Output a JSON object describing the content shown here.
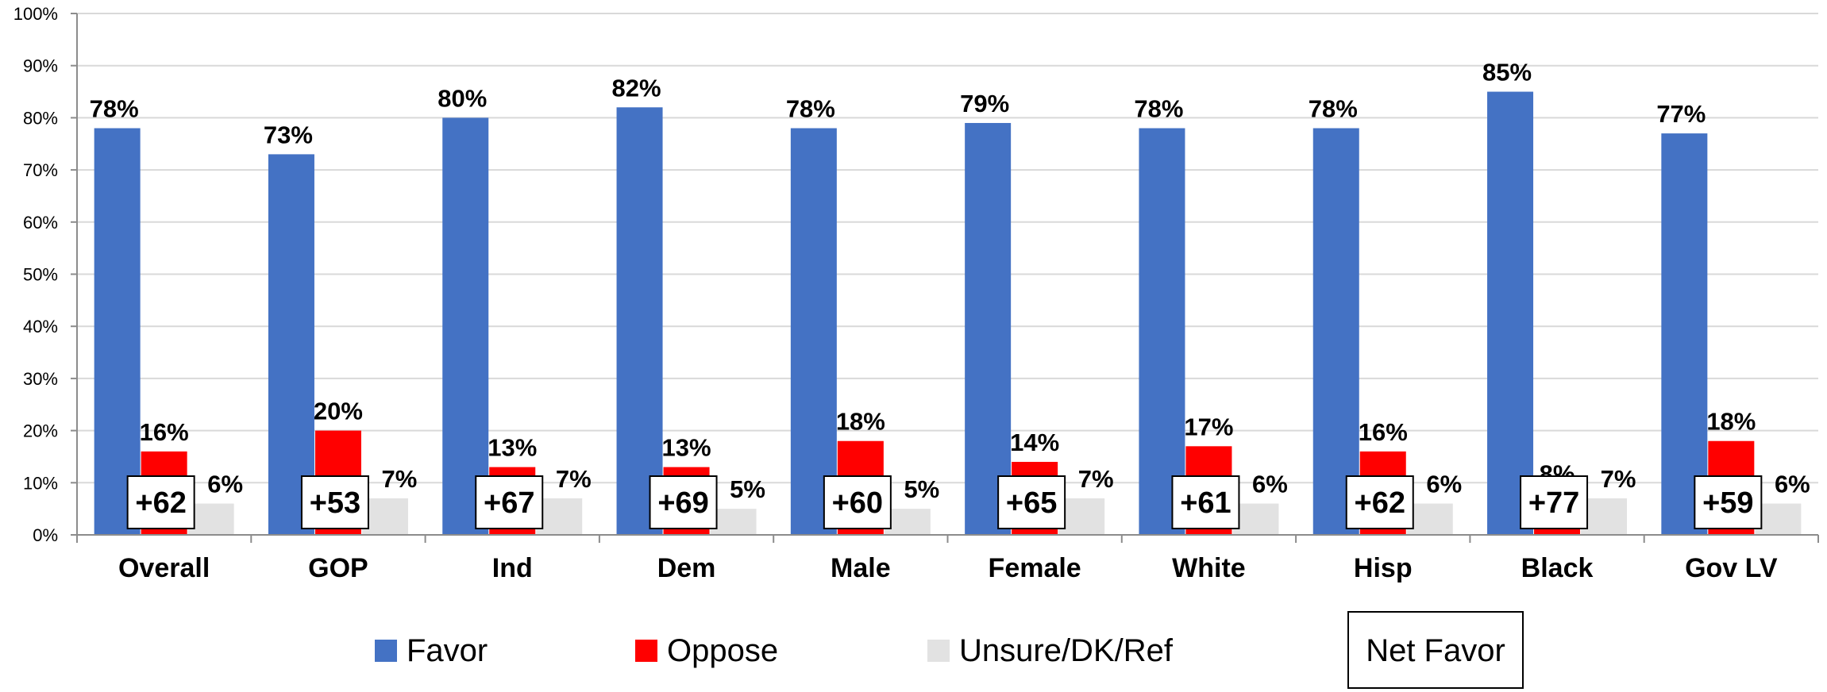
{
  "chart_data": {
    "type": "bar",
    "categories": [
      "Overall",
      "GOP",
      "Ind",
      "Dem",
      "Male",
      "Female",
      "White",
      "Hisp",
      "Black",
      "Gov LV"
    ],
    "y_ticks": [
      "0%",
      "10%",
      "20%",
      "30%",
      "40%",
      "50%",
      "60%",
      "70%",
      "80%",
      "90%",
      "100%"
    ],
    "ylim": [
      0,
      100
    ],
    "grid": true,
    "legend_position": "bottom",
    "series": [
      {
        "name": "Favor",
        "color": "#4472C4",
        "values": [
          78,
          73,
          80,
          82,
          78,
          79,
          78,
          78,
          85,
          77
        ],
        "labels": [
          "78%",
          "73%",
          "80%",
          "82%",
          "78%",
          "79%",
          "78%",
          "78%",
          "85%",
          "77%"
        ]
      },
      {
        "name": "Oppose",
        "color": "#FF0000",
        "values": [
          16,
          20,
          13,
          13,
          18,
          14,
          17,
          16,
          8,
          18
        ],
        "labels": [
          "16%",
          "20%",
          "13%",
          "13%",
          "18%",
          "14%",
          "17%",
          "16%",
          "8%",
          "18%"
        ]
      },
      {
        "name": "Unsure/DK/Ref",
        "color": "#E2E2E2",
        "values": [
          6,
          7,
          7,
          5,
          5,
          7,
          6,
          6,
          7,
          6
        ],
        "labels": [
          "6%",
          "7%",
          "7%",
          "5%",
          "5%",
          "7%",
          "6%",
          "6%",
          "7%",
          "6%"
        ]
      }
    ],
    "net_favor": {
      "name": "Net Favor",
      "labels": [
        "+62",
        "+53",
        "+67",
        "+69",
        "+60",
        "+65",
        "+61",
        "+62",
        "+77",
        "+59"
      ]
    }
  }
}
